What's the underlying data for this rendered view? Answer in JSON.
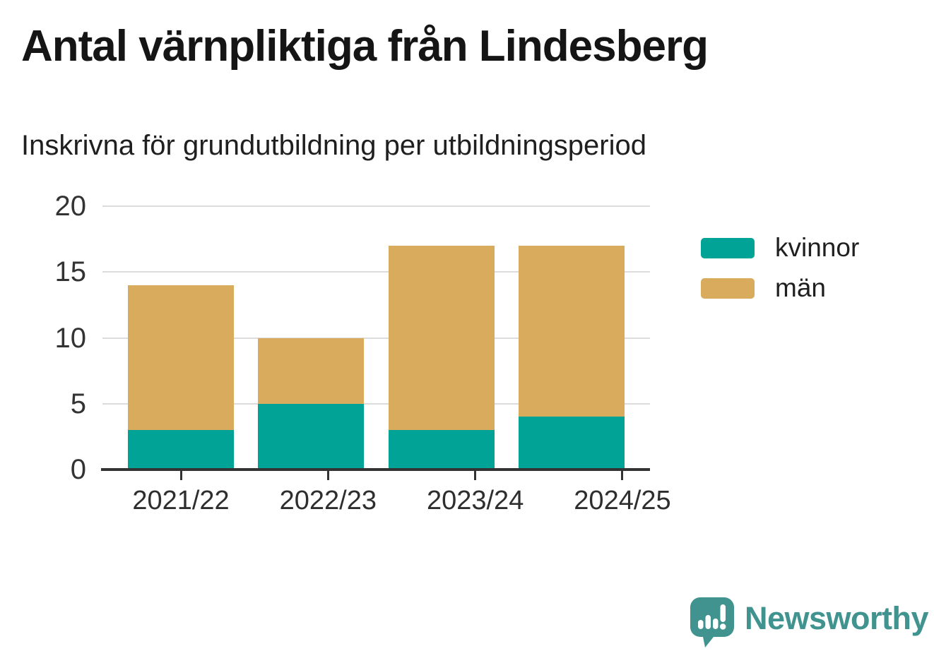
{
  "chart_data": {
    "type": "bar",
    "stacked": true,
    "title": "Antal värnpliktiga från Lindesberg",
    "subtitle": "Inskrivna för grundutbildning per utbildningsperiod",
    "categories": [
      "2021/22",
      "2022/23",
      "2023/24",
      "2024/25"
    ],
    "series": [
      {
        "name": "kvinnor",
        "color": "#00A396",
        "values": [
          3,
          5,
          3,
          4
        ]
      },
      {
        "name": "män",
        "color": "#D8AC5C",
        "values": [
          11,
          5,
          14,
          13
        ]
      }
    ],
    "xlabel": "",
    "ylabel": "",
    "ylim": [
      0,
      20
    ],
    "yticks": [
      0,
      5,
      10,
      15,
      20
    ],
    "grid": true,
    "legend_position": "right"
  },
  "colors": {
    "background": "#FFFFFF",
    "title_text": "#151515",
    "axis_text": "#333333",
    "gridline": "#DCDCDC",
    "axis_line": "#333333",
    "brand_teal": "#40938E"
  },
  "footer": {
    "brand": "Newsworthy",
    "logo_icon": "newsworthy-speech-bubble-chart-icon"
  }
}
